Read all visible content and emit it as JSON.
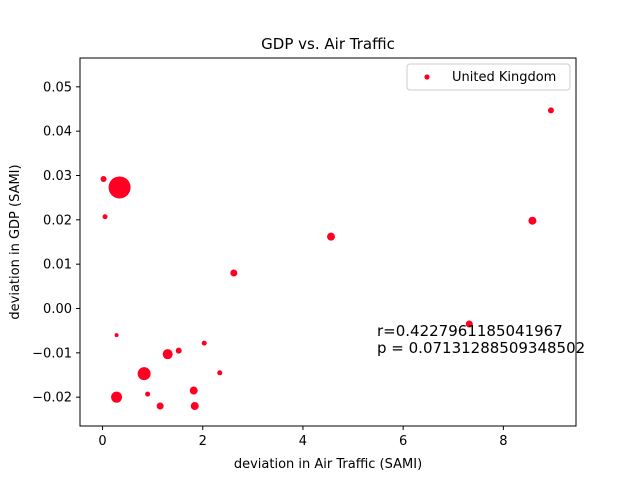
{
  "chart_data": {
    "type": "scatter",
    "title": "GDP vs. Air Traffic",
    "xlabel": "deviation in Air Traffic (SAMI)",
    "ylabel": "deviation in GDP (SAMI)",
    "xlim": [
      -0.45,
      9.45
    ],
    "ylim": [
      -0.0265,
      0.0565
    ],
    "xticks": [
      0,
      2,
      4,
      6,
      8
    ],
    "xtick_labels": [
      "0",
      "2",
      "4",
      "6",
      "8"
    ],
    "yticks": [
      -0.02,
      -0.01,
      0.0,
      0.01,
      0.02,
      0.03,
      0.04,
      0.05
    ],
    "ytick_labels": [
      "−0.02",
      "−0.01",
      "0.00",
      "0.01",
      "0.02",
      "0.03",
      "0.04",
      "0.05"
    ],
    "grid": false,
    "legend_position": "top-right",
    "series": [
      {
        "name": "United Kingdom",
        "color": "#ff0022",
        "points": [
          {
            "x": 0.34,
            "y": 0.0273,
            "size": 22
          },
          {
            "x": 0.02,
            "y": 0.0292,
            "size": 6
          },
          {
            "x": 0.05,
            "y": 0.0207,
            "size": 5
          },
          {
            "x": 0.28,
            "y": -0.006,
            "size": 4
          },
          {
            "x": 0.28,
            "y": -0.02,
            "size": 11
          },
          {
            "x": 0.83,
            "y": -0.0147,
            "size": 13
          },
          {
            "x": 0.9,
            "y": -0.0193,
            "size": 5
          },
          {
            "x": 1.15,
            "y": -0.022,
            "size": 7
          },
          {
            "x": 1.3,
            "y": -0.0103,
            "size": 10
          },
          {
            "x": 1.52,
            "y": -0.0095,
            "size": 6
          },
          {
            "x": 1.82,
            "y": -0.0185,
            "size": 8
          },
          {
            "x": 1.84,
            "y": -0.022,
            "size": 8
          },
          {
            "x": 2.03,
            "y": -0.0078,
            "size": 5
          },
          {
            "x": 2.34,
            "y": -0.0145,
            "size": 5
          },
          {
            "x": 2.62,
            "y": 0.008,
            "size": 7
          },
          {
            "x": 4.56,
            "y": 0.0162,
            "size": 8
          },
          {
            "x": 7.32,
            "y": -0.0035,
            "size": 7
          },
          {
            "x": 8.58,
            "y": 0.0198,
            "size": 8
          },
          {
            "x": 8.95,
            "y": 0.0447,
            "size": 6
          }
        ]
      }
    ],
    "annotations": [
      {
        "text": "r=0.4227961185041967"
      },
      {
        "text": "p = 0.07131288509348502"
      }
    ]
  }
}
